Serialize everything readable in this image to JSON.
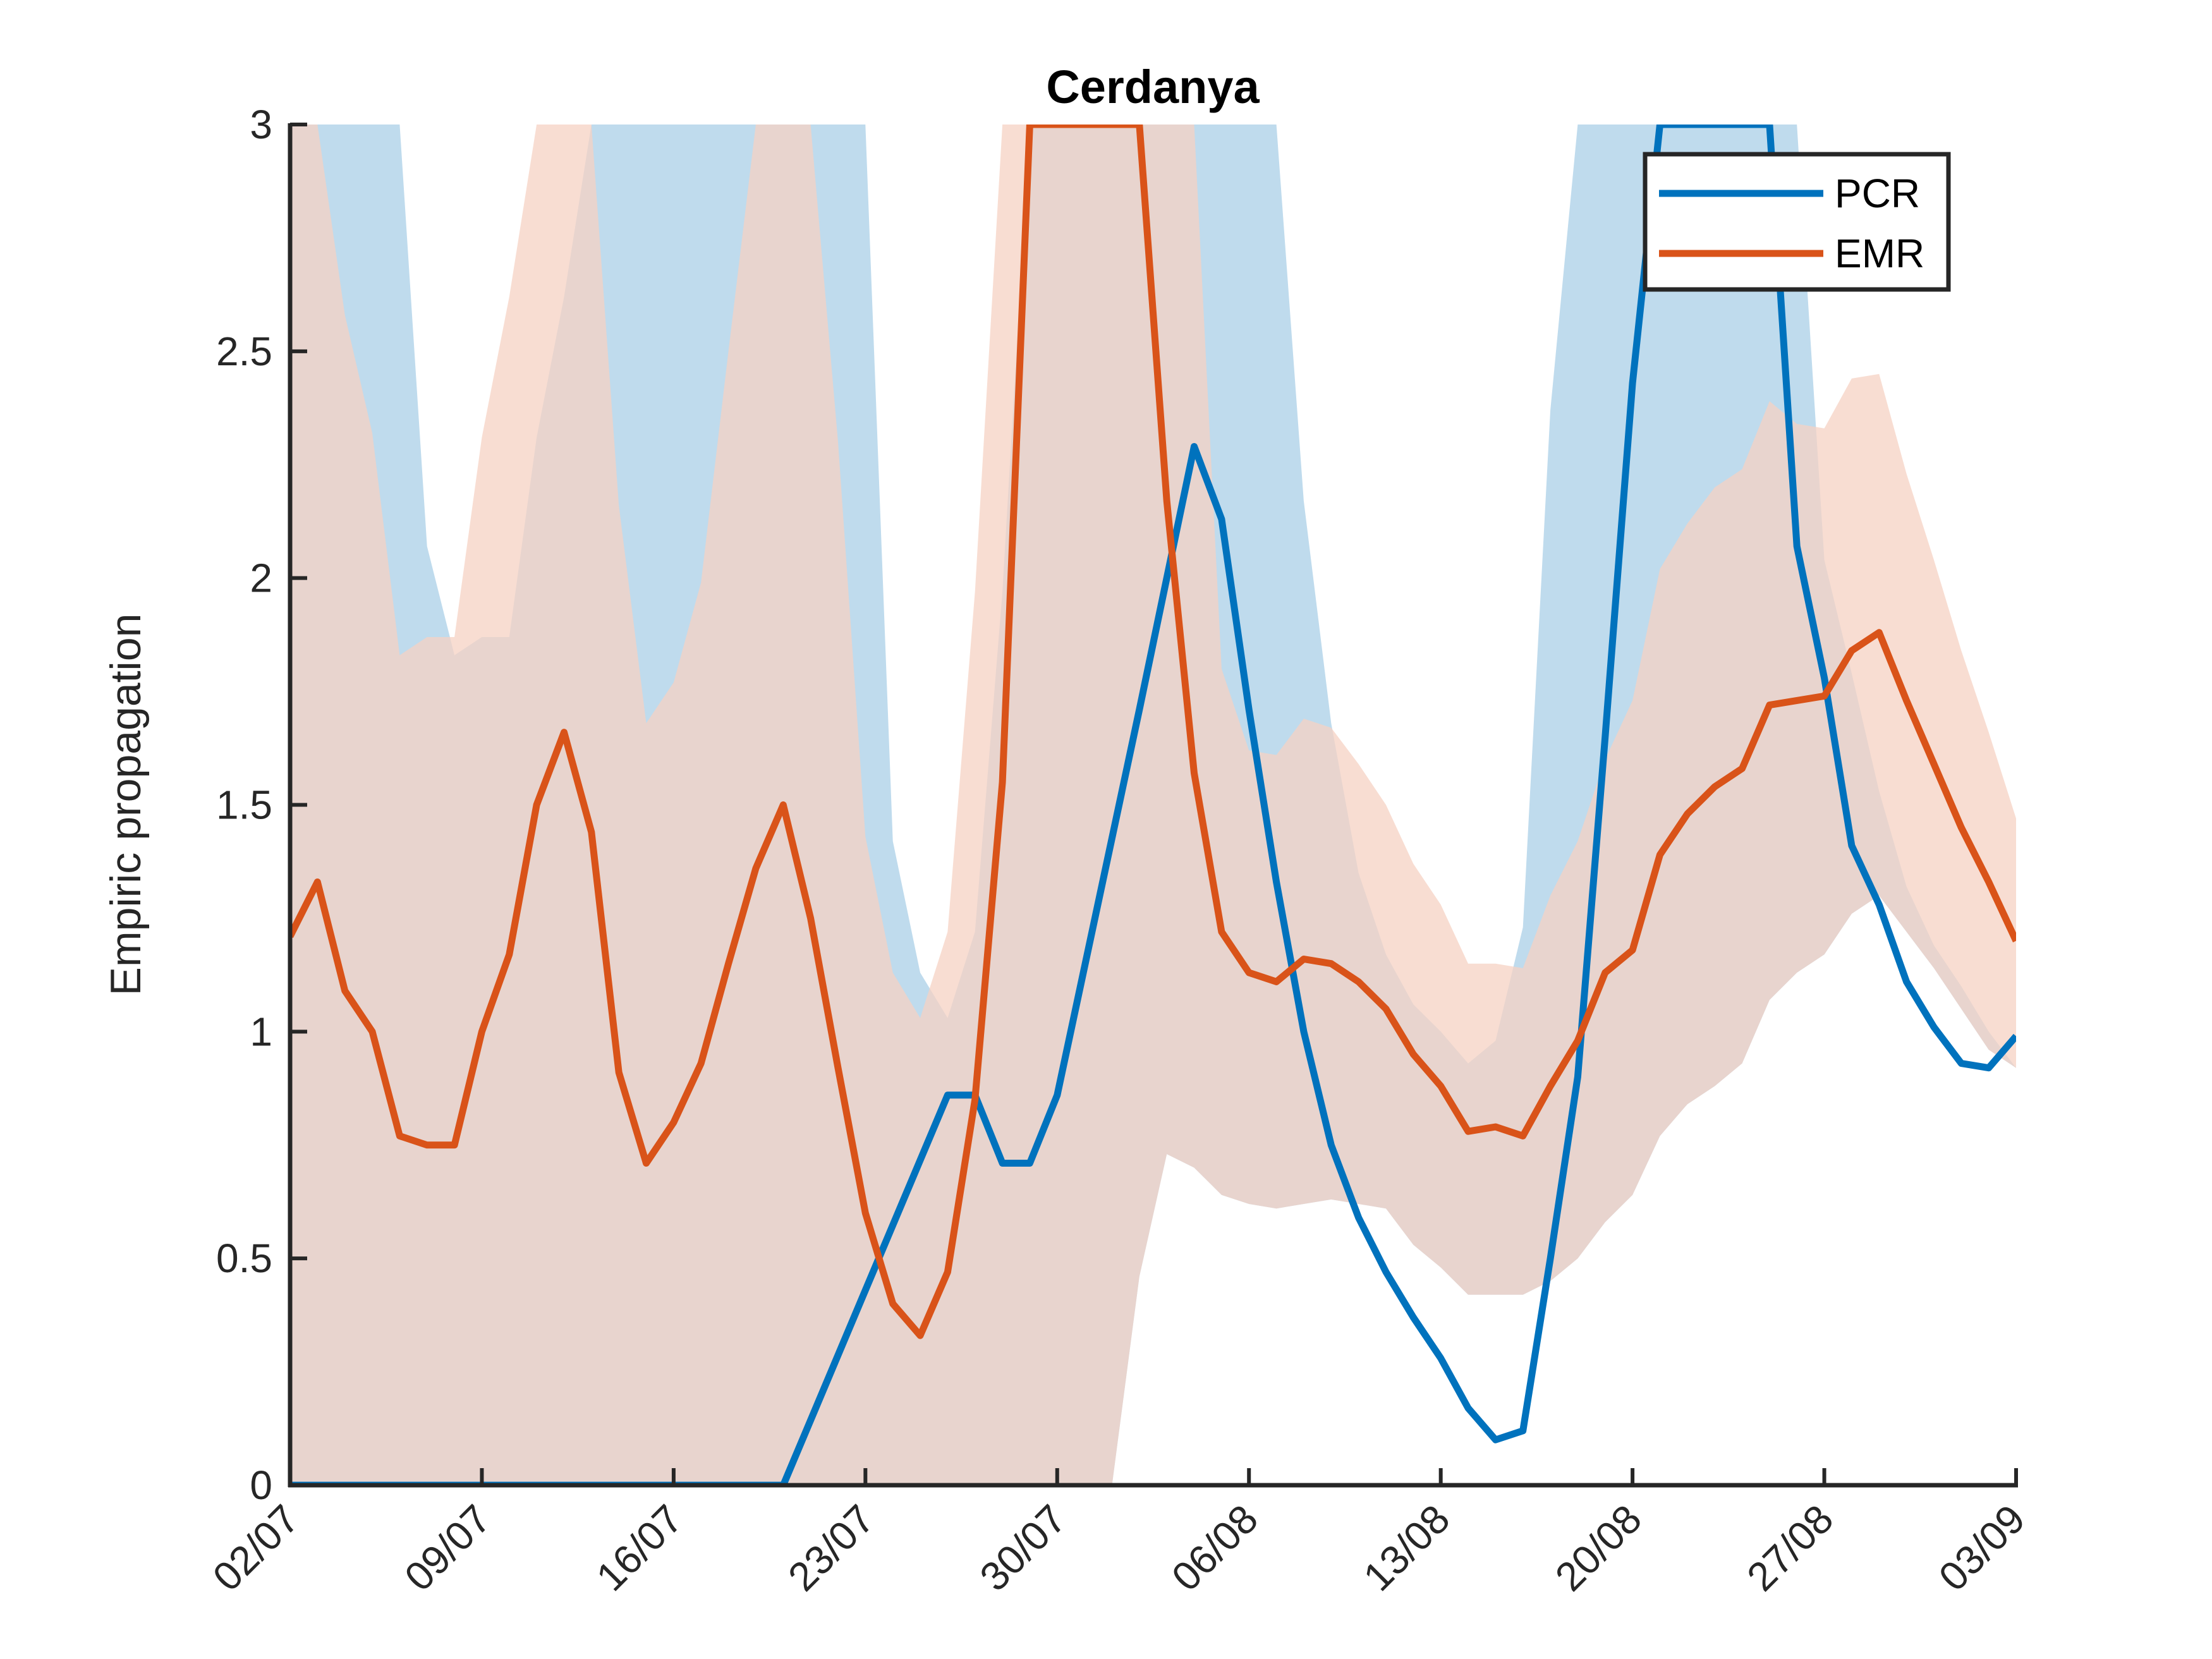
{
  "chart_data": {
    "type": "line",
    "title": "Cerdanya",
    "xlabel": "",
    "ylabel": "Empiric propagation",
    "ylim": [
      0,
      3
    ],
    "yticks": [
      "0",
      "0.5",
      "1",
      "1.5",
      "2",
      "2.5",
      "3"
    ],
    "x_start": "02/07",
    "x_end": "03/09",
    "xticks": [
      "02/07",
      "09/07",
      "16/07",
      "23/07",
      "30/07",
      "06/08",
      "13/08",
      "20/08",
      "27/08",
      "03/09"
    ],
    "grid": false,
    "legend_position": "top-right",
    "series": [
      {
        "name": "PCR",
        "color": "#0072bd",
        "band_color": "#bfdbed",
        "values": [
          [
            0,
            0
          ],
          [
            18,
            0
          ],
          [
            21,
            0.43
          ],
          [
            24,
            0.86
          ],
          [
            25,
            0.86
          ],
          [
            26,
            0.71
          ],
          [
            27,
            0.71
          ],
          [
            28,
            0.86
          ],
          [
            31,
            1.71
          ],
          [
            33,
            2.29
          ],
          [
            34,
            2.13
          ],
          [
            35,
            1.71
          ],
          [
            36,
            1.33
          ],
          [
            37,
            1.0
          ],
          [
            38,
            0.75
          ],
          [
            39,
            0.59
          ],
          [
            40,
            0.47
          ],
          [
            41,
            0.37
          ],
          [
            42,
            0.28
          ],
          [
            43,
            0.17
          ],
          [
            44,
            0.1
          ],
          [
            45,
            0.12
          ],
          [
            46,
            0.5
          ],
          [
            47,
            0.9
          ],
          [
            48,
            1.65
          ],
          [
            49,
            2.43
          ],
          [
            50,
            3.0
          ],
          [
            54,
            3.0
          ],
          [
            55,
            2.07
          ],
          [
            56,
            1.78
          ],
          [
            57,
            1.41
          ],
          [
            58,
            1.28
          ],
          [
            59,
            1.11
          ],
          [
            60,
            1.01
          ],
          [
            61,
            0.93
          ],
          [
            62,
            0.92
          ],
          [
            63,
            0.99
          ]
        ],
        "band_upper": [
          [
            0,
            3
          ],
          [
            4,
            3
          ],
          [
            5,
            2.07
          ],
          [
            6,
            1.83
          ],
          [
            7,
            1.87
          ],
          [
            8,
            1.87
          ],
          [
            9,
            2.31
          ],
          [
            10,
            2.62
          ],
          [
            11,
            3
          ],
          [
            12,
            3
          ],
          [
            13,
            3
          ],
          [
            14,
            3
          ],
          [
            15,
            3
          ],
          [
            16,
            3
          ],
          [
            17,
            3
          ],
          [
            18,
            3
          ],
          [
            19,
            3
          ],
          [
            20,
            3
          ],
          [
            21,
            3
          ],
          [
            22,
            1.42
          ],
          [
            23,
            1.13
          ],
          [
            24,
            1.03
          ],
          [
            25,
            1.22
          ],
          [
            26,
            1.97
          ],
          [
            27,
            3
          ],
          [
            33,
            3
          ],
          [
            34,
            3
          ],
          [
            35,
            3
          ],
          [
            36,
            3
          ],
          [
            37,
            2.17
          ],
          [
            38,
            1.68
          ],
          [
            39,
            1.35
          ],
          [
            40,
            1.17
          ],
          [
            41,
            1.06
          ],
          [
            42,
            1.0
          ],
          [
            43,
            0.93
          ],
          [
            44,
            0.98
          ],
          [
            45,
            1.23
          ],
          [
            46,
            2.37
          ],
          [
            47,
            3
          ],
          [
            55,
            3
          ],
          [
            56,
            2.04
          ],
          [
            57,
            1.79
          ],
          [
            58,
            1.53
          ],
          [
            59,
            1.32
          ],
          [
            60,
            1.19
          ],
          [
            61,
            1.1
          ],
          [
            62,
            1.0
          ],
          [
            63,
            0.92
          ]
        ],
        "band_lower": [
          [
            0,
            0
          ],
          [
            30,
            0
          ],
          [
            31,
            0.46
          ],
          [
            32,
            0.73
          ],
          [
            33,
            0.7
          ],
          [
            34,
            0.64
          ],
          [
            35,
            0.62
          ],
          [
            36,
            0.61
          ],
          [
            37,
            0.62
          ],
          [
            38,
            0.63
          ],
          [
            39,
            0.62
          ],
          [
            40,
            0.61
          ],
          [
            41,
            0.53
          ],
          [
            42,
            0.48
          ],
          [
            43,
            0.42
          ],
          [
            44,
            0.42
          ],
          [
            45,
            0.42
          ],
          [
            46,
            0.45
          ],
          [
            47,
            0.5
          ],
          [
            48,
            0.58
          ],
          [
            49,
            0.64
          ],
          [
            50,
            0.77
          ],
          [
            51,
            0.84
          ],
          [
            52,
            0.88
          ],
          [
            53,
            0.93
          ],
          [
            54,
            1.07
          ],
          [
            55,
            1.13
          ],
          [
            56,
            1.17
          ],
          [
            57,
            1.26
          ],
          [
            58,
            1.3
          ],
          [
            59,
            1.22
          ],
          [
            60,
            1.14
          ],
          [
            61,
            1.05
          ],
          [
            62,
            0.96
          ],
          [
            63,
            0.92
          ]
        ]
      },
      {
        "name": "EMR",
        "color": "#d95319",
        "band_color": "#f5d2c3",
        "values": [
          [
            0,
            1.21
          ],
          [
            1,
            1.33
          ],
          [
            2,
            1.09
          ],
          [
            3,
            1.0
          ],
          [
            4,
            0.77
          ],
          [
            5,
            0.75
          ],
          [
            6,
            0.75
          ],
          [
            7,
            1.0
          ],
          [
            8,
            1.17
          ],
          [
            9,
            1.5
          ],
          [
            10,
            1.66
          ],
          [
            11,
            1.44
          ],
          [
            12,
            0.91
          ],
          [
            13,
            0.71
          ],
          [
            14,
            0.8
          ],
          [
            15,
            0.93
          ],
          [
            16,
            1.15
          ],
          [
            17,
            1.36
          ],
          [
            18,
            1.5
          ],
          [
            19,
            1.25
          ],
          [
            20,
            0.92
          ],
          [
            21,
            0.6
          ],
          [
            22,
            0.4
          ],
          [
            23,
            0.33
          ],
          [
            24,
            0.47
          ],
          [
            25,
            0.85
          ],
          [
            26,
            1.55
          ],
          [
            27,
            3.0
          ],
          [
            31,
            3.0
          ],
          [
            32,
            2.17
          ],
          [
            33,
            1.57
          ],
          [
            34,
            1.22
          ],
          [
            35,
            1.13
          ],
          [
            36,
            1.11
          ],
          [
            37,
            1.16
          ],
          [
            38,
            1.15
          ],
          [
            39,
            1.11
          ],
          [
            40,
            1.05
          ],
          [
            41,
            0.95
          ],
          [
            42,
            0.88
          ],
          [
            43,
            0.78
          ],
          [
            44,
            0.79
          ],
          [
            45,
            0.77
          ],
          [
            46,
            0.88
          ],
          [
            47,
            0.98
          ],
          [
            48,
            1.13
          ],
          [
            49,
            1.18
          ],
          [
            50,
            1.39
          ],
          [
            51,
            1.48
          ],
          [
            52,
            1.54
          ],
          [
            53,
            1.58
          ],
          [
            54,
            1.72
          ],
          [
            55,
            1.73
          ],
          [
            56,
            1.74
          ],
          [
            57,
            1.84
          ],
          [
            58,
            1.88
          ],
          [
            59,
            1.73
          ],
          [
            60,
            1.59
          ],
          [
            61,
            1.45
          ],
          [
            62,
            1.33
          ],
          [
            63,
            1.2
          ]
        ],
        "band_upper": [
          [
            0,
            3
          ],
          [
            1,
            3
          ],
          [
            2,
            2.58
          ],
          [
            3,
            2.32
          ],
          [
            4,
            1.83
          ],
          [
            5,
            1.87
          ],
          [
            6,
            1.87
          ],
          [
            7,
            2.31
          ],
          [
            8,
            2.62
          ],
          [
            9,
            3
          ],
          [
            11,
            3
          ],
          [
            12,
            2.16
          ],
          [
            13,
            1.68
          ],
          [
            14,
            1.77
          ],
          [
            15,
            1.99
          ],
          [
            16,
            2.5
          ],
          [
            17,
            3
          ],
          [
            19,
            3
          ],
          [
            20,
            2.3
          ],
          [
            21,
            1.43
          ],
          [
            22,
            1.13
          ],
          [
            23,
            1.03
          ],
          [
            24,
            1.22
          ],
          [
            25,
            1.97
          ],
          [
            26,
            3
          ],
          [
            33,
            3
          ],
          [
            34,
            1.8
          ],
          [
            35,
            1.62
          ],
          [
            36,
            1.61
          ],
          [
            37,
            1.69
          ],
          [
            38,
            1.67
          ],
          [
            39,
            1.59
          ],
          [
            40,
            1.5
          ],
          [
            41,
            1.37
          ],
          [
            42,
            1.28
          ],
          [
            43,
            1.15
          ],
          [
            44,
            1.15
          ],
          [
            45,
            1.14
          ],
          [
            46,
            1.3
          ],
          [
            47,
            1.42
          ],
          [
            48,
            1.6
          ],
          [
            49,
            1.73
          ],
          [
            50,
            2.02
          ],
          [
            51,
            2.12
          ],
          [
            52,
            2.2
          ],
          [
            53,
            2.24
          ],
          [
            54,
            2.39
          ],
          [
            55,
            2.34
          ],
          [
            56,
            2.33
          ],
          [
            57,
            2.44
          ],
          [
            58,
            2.45
          ],
          [
            59,
            2.23
          ],
          [
            60,
            2.04
          ],
          [
            61,
            1.84
          ],
          [
            62,
            1.66
          ],
          [
            63,
            1.47
          ]
        ],
        "band_lower": [
          [
            0,
            0
          ],
          [
            30,
            0
          ],
          [
            31,
            0.46
          ],
          [
            32,
            0.73
          ],
          [
            33,
            0.7
          ],
          [
            34,
            0.64
          ],
          [
            35,
            0.62
          ],
          [
            36,
            0.61
          ],
          [
            37,
            0.62
          ],
          [
            38,
            0.63
          ],
          [
            39,
            0.62
          ],
          [
            40,
            0.61
          ],
          [
            41,
            0.53
          ],
          [
            42,
            0.48
          ],
          [
            43,
            0.42
          ],
          [
            44,
            0.42
          ],
          [
            45,
            0.42
          ],
          [
            46,
            0.45
          ],
          [
            47,
            0.5
          ],
          [
            48,
            0.58
          ],
          [
            49,
            0.64
          ],
          [
            50,
            0.77
          ],
          [
            51,
            0.84
          ],
          [
            52,
            0.88
          ],
          [
            53,
            0.93
          ],
          [
            54,
            1.07
          ],
          [
            55,
            1.13
          ],
          [
            56,
            1.17
          ],
          [
            57,
            1.26
          ],
          [
            58,
            1.3
          ],
          [
            59,
            1.22
          ],
          [
            60,
            1.14
          ],
          [
            61,
            1.05
          ],
          [
            62,
            0.96
          ],
          [
            63,
            0.92
          ]
        ]
      }
    ]
  }
}
